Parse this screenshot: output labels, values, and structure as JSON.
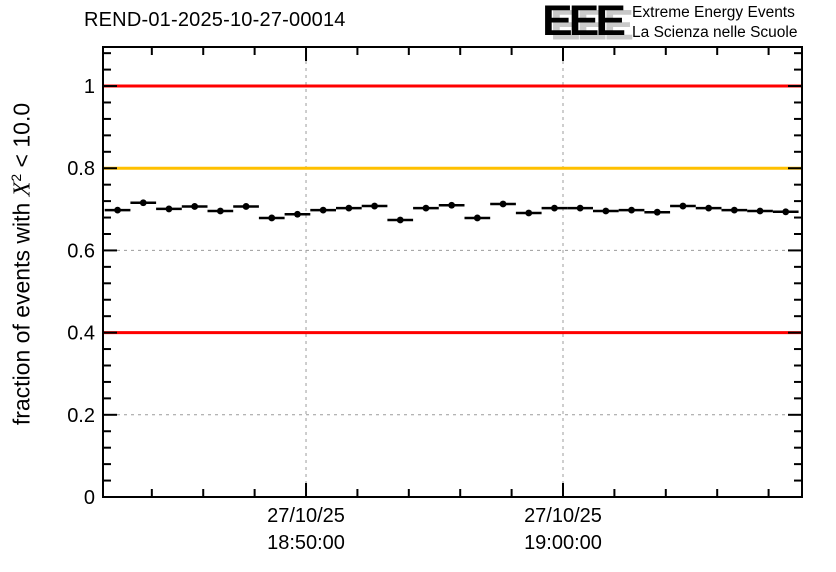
{
  "logo": {
    "acronym": "EEE",
    "line1": "Extreme Energy Events",
    "line2": "La Scienza nelle Scuole",
    "text_color": "#2222dd",
    "shadow_color": "#c9c9c9"
  },
  "chart_data": {
    "type": "scatter",
    "title": "REND-01-2025-10-27-00014",
    "ylabel": {
      "prefix": "fraction of events with ",
      "symbol": "X",
      "exponent": "2",
      "suffix": " < 10.0"
    },
    "ylim": [
      0,
      1.095
    ],
    "y_major_ticks": [
      {
        "value": 0,
        "label": "0"
      },
      {
        "value": 0.2,
        "label": "0.2"
      },
      {
        "value": 0.4,
        "label": "0.4"
      },
      {
        "value": 0.6,
        "label": "0.6"
      },
      {
        "value": 0.8,
        "label": "0.8"
      },
      {
        "value": 1.0,
        "label": "1"
      }
    ],
    "y_minor_step": 0.04,
    "x_reference_time": "27/10/25 18:50:00",
    "x_window_seconds": [
      -474,
      1158
    ],
    "x_major_ticks": [
      {
        "seconds": 0,
        "label_lines": [
          "27/10/25",
          "18:50:00"
        ]
      },
      {
        "seconds": 600,
        "label_lines": [
          "27/10/25",
          "19:00:00"
        ]
      }
    ],
    "x_minor_step_seconds": 120,
    "grid": true,
    "grid_color": "#9c9c9c",
    "reference_lines": [
      {
        "y": 1.0,
        "color": "#ff0000"
      },
      {
        "y": 0.8,
        "color": "#ffc000"
      },
      {
        "y": 0.4,
        "color": "#ff0000"
      }
    ],
    "series": [
      {
        "name": "fraction of events with chi2 < 10.0",
        "marker": "filled-circle",
        "color": "#000000",
        "x_error_seconds": 30,
        "points": [
          {
            "time": "18:42:40",
            "seconds": -440,
            "value": 0.698
          },
          {
            "time": "18:43:40",
            "seconds": -380,
            "value": 0.716
          },
          {
            "time": "18:44:40",
            "seconds": -320,
            "value": 0.701
          },
          {
            "time": "18:45:40",
            "seconds": -260,
            "value": 0.707
          },
          {
            "time": "18:46:40",
            "seconds": -200,
            "value": 0.696
          },
          {
            "time": "18:47:40",
            "seconds": -140,
            "value": 0.707
          },
          {
            "time": "18:48:40",
            "seconds": -80,
            "value": 0.679
          },
          {
            "time": "18:49:40",
            "seconds": -20,
            "value": 0.688
          },
          {
            "time": "18:50:40",
            "seconds": 40,
            "value": 0.698
          },
          {
            "time": "18:51:40",
            "seconds": 100,
            "value": 0.703
          },
          {
            "time": "18:52:40",
            "seconds": 160,
            "value": 0.708
          },
          {
            "time": "18:53:40",
            "seconds": 220,
            "value": 0.674
          },
          {
            "time": "18:54:40",
            "seconds": 280,
            "value": 0.703
          },
          {
            "time": "18:55:40",
            "seconds": 340,
            "value": 0.71
          },
          {
            "time": "18:56:40",
            "seconds": 400,
            "value": 0.679
          },
          {
            "time": "18:57:40",
            "seconds": 460,
            "value": 0.713
          },
          {
            "time": "18:58:40",
            "seconds": 520,
            "value": 0.691
          },
          {
            "time": "18:59:40",
            "seconds": 580,
            "value": 0.703
          },
          {
            "time": "19:00:40",
            "seconds": 640,
            "value": 0.703
          },
          {
            "time": "19:01:40",
            "seconds": 700,
            "value": 0.696
          },
          {
            "time": "19:02:40",
            "seconds": 760,
            "value": 0.698
          },
          {
            "time": "19:03:40",
            "seconds": 820,
            "value": 0.693
          },
          {
            "time": "19:04:40",
            "seconds": 880,
            "value": 0.708
          },
          {
            "time": "19:05:40",
            "seconds": 940,
            "value": 0.703
          },
          {
            "time": "19:06:40",
            "seconds": 1000,
            "value": 0.698
          },
          {
            "time": "19:07:40",
            "seconds": 1060,
            "value": 0.696
          },
          {
            "time": "19:08:40",
            "seconds": 1120,
            "value": 0.694
          }
        ]
      }
    ]
  }
}
